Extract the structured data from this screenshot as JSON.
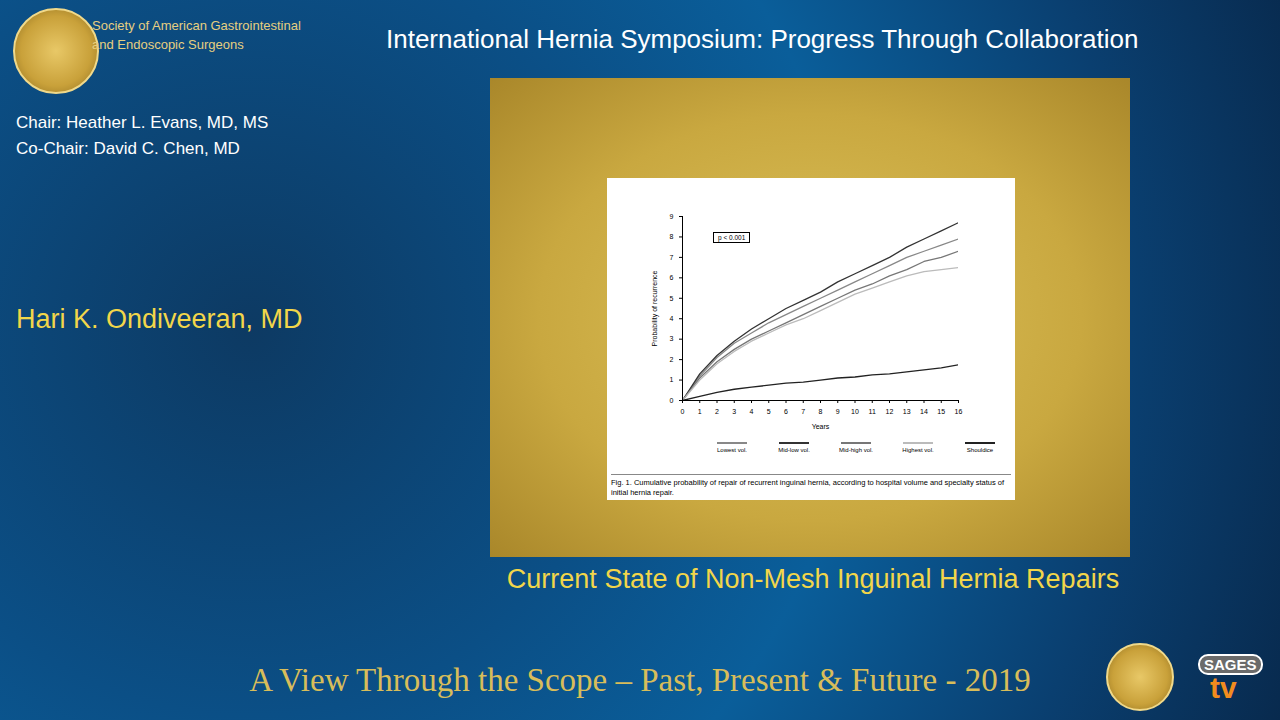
{
  "frame": {
    "society": [
      "Society of American Gastrointestinal",
      "and Endoscopic Surgeons"
    ],
    "symposium": "International Hernia Symposium: Progress Through Collaboration",
    "chair": "Chair: Heather L. Evans, MD, MS",
    "co_chair": "Co-Chair: David C. Chen, MD",
    "speaker": "Hari K. Ondiveeran, MD",
    "talk_title": "Current State of Non-Mesh Inguinal Hernia Repairs",
    "footer": "A View Through the Scope – Past, Present & Future - 2019",
    "brand": [
      "SAGES",
      "tv"
    ]
  },
  "chart_data": {
    "type": "line",
    "caption": "Fig. 1. Cumulative probability of repair of recurrent inguinal hernia, according to hospital volume and specialty status of initial hernia repair.",
    "annotation": "p < 0.001",
    "x_label": "Years",
    "y_label": "Probability of recurrence",
    "x": [
      0,
      1,
      2,
      3,
      4,
      5,
      6,
      7,
      8,
      9,
      10,
      11,
      12,
      13,
      14,
      15,
      16
    ],
    "series": [
      {
        "name": "Lowest vol.",
        "color": "#888888",
        "values": [
          0,
          1.2,
          2.1,
          2.8,
          3.3,
          3.8,
          4.2,
          4.6,
          5.0,
          5.4,
          5.8,
          6.2,
          6.6,
          7.0,
          7.3,
          7.6,
          7.9
        ]
      },
      {
        "name": "Mid-low vol.",
        "color": "#333333",
        "values": [
          0,
          1.3,
          2.2,
          2.9,
          3.5,
          4.0,
          4.5,
          4.9,
          5.3,
          5.8,
          6.2,
          6.6,
          7.0,
          7.5,
          7.9,
          8.3,
          8.7
        ]
      },
      {
        "name": "Mid-high vol.",
        "color": "#777777",
        "values": [
          0,
          1.1,
          1.9,
          2.5,
          3.0,
          3.4,
          3.8,
          4.2,
          4.6,
          5.0,
          5.4,
          5.7,
          6.1,
          6.4,
          6.8,
          7.0,
          7.3
        ]
      },
      {
        "name": "Highest vol.",
        "color": "#bbbbbb",
        "values": [
          0,
          1.0,
          1.8,
          2.4,
          2.9,
          3.3,
          3.7,
          4.0,
          4.4,
          4.8,
          5.2,
          5.5,
          5.8,
          6.1,
          6.3,
          6.4,
          6.5
        ]
      },
      {
        "name": "Shouldice",
        "color": "#222222",
        "values": [
          0,
          0.2,
          0.4,
          0.55,
          0.65,
          0.75,
          0.85,
          0.9,
          1.0,
          1.1,
          1.15,
          1.25,
          1.3,
          1.4,
          1.5,
          1.6,
          1.75
        ]
      }
    ],
    "xlim": [
      0,
      16
    ],
    "xticks": [
      0,
      1,
      2,
      3,
      4,
      5,
      6,
      7,
      8,
      9,
      10,
      11,
      12,
      13,
      14,
      15,
      16
    ],
    "ylim": [
      0,
      9
    ],
    "yticks": [
      0,
      1,
      2,
      3,
      4,
      5,
      6,
      7,
      8,
      9
    ],
    "grid": false,
    "legend": "bottom"
  }
}
